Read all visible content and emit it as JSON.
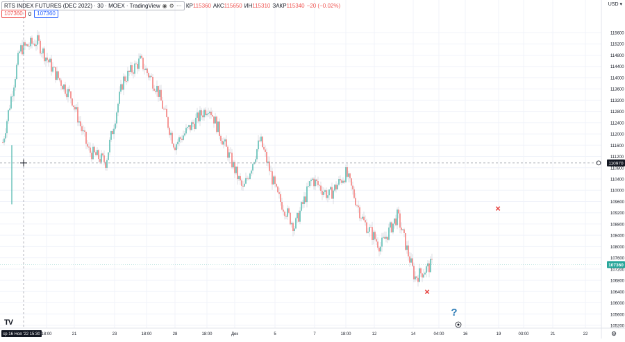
{
  "header": {
    "symbol_title": "RTS INDEX FUTURES (DEC 2022) · 30 · MOEX · TradingView",
    "ohlc": [
      {
        "label": "КР",
        "value": "115360"
      },
      {
        "label": "АКС",
        "value": "115650"
      },
      {
        "label": "ИН",
        "value": "115310"
      },
      {
        "label": "ЗАКР",
        "value": "115340"
      },
      {
        "label": "",
        "value": "−20 (−0.02%)"
      }
    ],
    "sell_price": "107360",
    "spread": "0",
    "buy_price": "107360",
    "currency": "USD ▾"
  },
  "crosshair": {
    "date_label": "ср 16 Ноя '22   15:30",
    "price_label": "110970",
    "price": 110970
  },
  "last_price_label": "107360",
  "axis": {
    "y_ticks": [
      "115600",
      "115200",
      "114800",
      "114400",
      "114000",
      "113600",
      "113200",
      "112800",
      "112400",
      "112000",
      "111600",
      "111200",
      "110800",
      "110400",
      "110000",
      "109600",
      "109200",
      "108800",
      "108400",
      "108000",
      "107600",
      "107200",
      "106800",
      "106400",
      "106000",
      "105600",
      "105200"
    ],
    "x_ticks": [
      "18:00",
      "21",
      "23",
      "18:00",
      "28",
      "18:00",
      "Дек",
      "5",
      "7",
      "18:00",
      "12",
      "14",
      "04:00",
      "16",
      "19",
      "03:00",
      "21",
      "22"
    ]
  },
  "markers": {
    "cross_1": "×",
    "cross_2": "×",
    "question": "?",
    "logo": "TV"
  },
  "colors": {
    "up": "#26a69a",
    "down": "#ef5350",
    "grid": "#f0f3fa",
    "crosshair": "#9598a1",
    "last_price": "#26a69a"
  },
  "chart_data": {
    "type": "candlestick",
    "title": "RTS INDEX FUTURES (DEC 2022) · 30 · MOEX",
    "ylim": [
      105000,
      115900
    ],
    "x": [
      "16 Nov",
      "18 Nov",
      "21 Nov",
      "23 Nov",
      "23 Nov 18:00",
      "28 Nov",
      "28 Nov 18:00",
      "1 Dec",
      "5 Dec",
      "7 Dec",
      "7 Dec 18:00",
      "12 Dec",
      "14 Dec",
      "15 Dec"
    ],
    "close_path": [
      {
        "x": "16 Nov 15:30",
        "y": 111700
      },
      {
        "x": "17 Nov",
        "y": 115000
      },
      {
        "x": "17 Nov 18:00",
        "y": 115300
      },
      {
        "x": "18 Nov",
        "y": 114200
      },
      {
        "x": "21 Nov",
        "y": 113300
      },
      {
        "x": "22 Nov",
        "y": 111400
      },
      {
        "x": "22 Nov 18:00",
        "y": 111000
      },
      {
        "x": "23 Nov",
        "y": 113900
      },
      {
        "x": "24 Nov",
        "y": 114600
      },
      {
        "x": "25 Nov",
        "y": 113600
      },
      {
        "x": "28 Nov",
        "y": 111600
      },
      {
        "x": "29 Nov",
        "y": 112300
      },
      {
        "x": "30 Nov",
        "y": 113000
      },
      {
        "x": "1 Dec",
        "y": 111500
      },
      {
        "x": "2 Dec",
        "y": 110000
      },
      {
        "x": "5 Dec",
        "y": 111800
      },
      {
        "x": "6 Dec",
        "y": 109800
      },
      {
        "x": "7 Dec",
        "y": 108700
      },
      {
        "x": "8 Dec",
        "y": 110400
      },
      {
        "x": "9 Dec",
        "y": 109800
      },
      {
        "x": "12 Dec",
        "y": 110600
      },
      {
        "x": "13 Dec",
        "y": 108900
      },
      {
        "x": "14 Dec",
        "y": 108000
      },
      {
        "x": "14 Dec 18:00",
        "y": 109100
      },
      {
        "x": "15 Dec",
        "y": 106900
      },
      {
        "x": "15 Dec 04:00",
        "y": 107360
      }
    ]
  }
}
